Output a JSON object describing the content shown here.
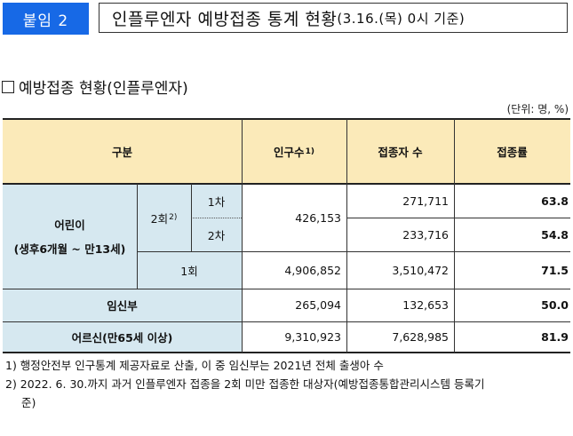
{
  "header": {
    "badge": "붙임 2",
    "title_main": "인플루엔자 예방접종 통계 현황",
    "title_sub": "(3.16.(목) 0시 기준)"
  },
  "section": {
    "title": "예방접종 현황(인플루엔자)",
    "unit": "(단위: 명, %)"
  },
  "table": {
    "headers": {
      "category": "구분",
      "population": "인구수",
      "population_note": "1)",
      "vaccinated": "접종자 수",
      "rate": "접종률"
    },
    "children": {
      "label_line1": "어린이",
      "label_line2": "(생후6개월 ~ 만13세)",
      "two_dose_label": "2회",
      "two_dose_note": "2)",
      "dose1_label": "1차",
      "dose2_label": "2차",
      "two_dose_population": "426,153",
      "dose1_vaccinated": "271,711",
      "dose1_rate": "63.8",
      "dose2_vaccinated": "233,716",
      "dose2_rate": "54.8",
      "one_dose_label": "1회",
      "one_dose_population": "4,906,852",
      "one_dose_vaccinated": "3,510,472",
      "one_dose_rate": "71.5"
    },
    "pregnant": {
      "label": "임신부",
      "population": "265,094",
      "vaccinated": "132,653",
      "rate": "50.0"
    },
    "elderly": {
      "label": "어르신(만65세 이상)",
      "population": "9,310,923",
      "vaccinated": "7,628,985",
      "rate": "81.9"
    }
  },
  "notes": {
    "note1": "1) 행정안전부 인구통계 제공자료로 산출, 이 중 임신부는 2021년 전체 출생아 수",
    "note2_line1": "2) 2022. 6. 30.까지 과거 인플루엔자 접종을 2회 미만 접종한 대상자(예방접종통합관리시스템 등록기",
    "note2_line2": "준)"
  }
}
